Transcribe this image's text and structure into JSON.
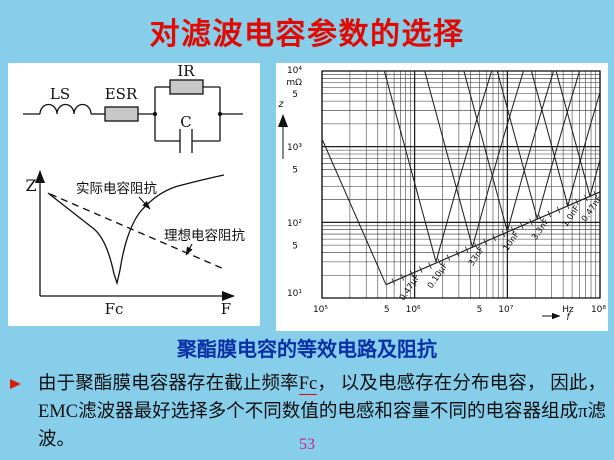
{
  "page": {
    "background_color": "#87CEEB",
    "number": "53",
    "number_color": "#C0268E"
  },
  "title": {
    "text": "对滤波电容参数的选择",
    "color": "#E00A00"
  },
  "caption": {
    "text": "聚酯膜电容的等效电路及阻抗",
    "color": "#0B2FA6"
  },
  "body": {
    "bullet_icon": "right-arrowhead",
    "bullet_color": "#D81E05",
    "text_before_fc": "由于聚酯膜电容器存在截止频率",
    "fc_term": "Fc",
    "fc_underline_color": "#E00A00",
    "text_after_fc": "， 以及电感存在分布电容， 因此，EMC滤波器最好选择多个不同数值的电感和容量不同的电容器组成π滤波。"
  },
  "circuit": {
    "labels": {
      "inductor": "LS",
      "series_resistor": "ESR",
      "parallel_resistor": "IR",
      "capacitor": "C"
    }
  },
  "sketch": {
    "y_axis_label": "Z",
    "x_axis_label": "F",
    "cutoff_label": "Fc",
    "solid_curve_label": "实际电容阻抗",
    "dashed_curve_label": "理想电容阻抗"
  },
  "chart_data": {
    "type": "line",
    "description": "Impedance vs frequency of polyester film capacitors: V-shaped log-log curves whose minima (self-resonance points) lie on a common rising inductive line with tick labels per capacitance value",
    "x_axis": {
      "unit": "Hz",
      "arrow_label": "f",
      "scale": "log",
      "range_hz": [
        100000,
        100000000
      ],
      "major_tick_labels": [
        "10⁵",
        "10⁶",
        "10⁷",
        "10⁸"
      ],
      "minor_tick_label": "5"
    },
    "y_axis": {
      "name": "z",
      "unit": "mΩ",
      "scale": "log",
      "range": [
        10,
        10000
      ],
      "major_tick_labels": [
        "10⁴",
        "10³",
        "10²",
        "10¹"
      ],
      "minor_tick_label": "5"
    },
    "grid": true,
    "series": [
      {
        "name": "0.47μF",
        "f_resonance_hz": 490000,
        "z_min": 15
      },
      {
        "name": "0.10μF",
        "f_resonance_hz": 1700000,
        "z_min": 30
      },
      {
        "name": "33nF",
        "f_resonance_hz": 4200000,
        "z_min": 47
      },
      {
        "name": "10nF",
        "f_resonance_hz": 10000000,
        "z_min": 76
      },
      {
        "name": "3.3nF",
        "f_resonance_hz": 21000000,
        "z_min": 112
      },
      {
        "name": "1.0nF",
        "f_resonance_hz": 45000000,
        "z_min": 166
      },
      {
        "name": "0.47nF",
        "f_resonance_hz": 78000000,
        "z_min": 221
      }
    ]
  }
}
